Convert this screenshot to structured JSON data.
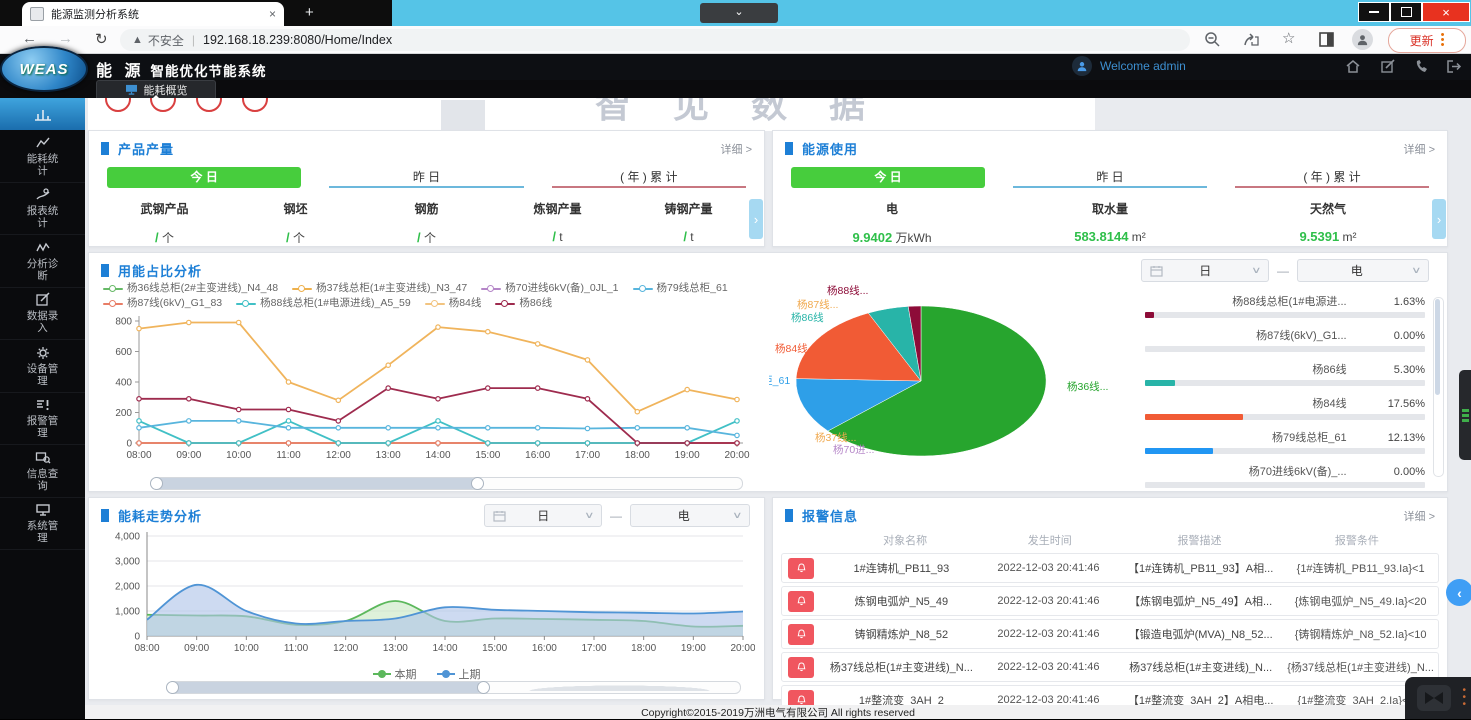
{
  "browser": {
    "tab_title": "能源监测分析系统",
    "security_label": "不安全",
    "url": "192.168.18.239:8080/Home/Index",
    "update_label": "更新"
  },
  "header": {
    "logo": "WEAS",
    "title_main": "能 源",
    "title_sub": "智能优化节能系统",
    "welcome": "Welcome admin"
  },
  "tabstrip": {
    "active_tab": "能耗概览"
  },
  "banner": {
    "watermark": "智 见 数 据"
  },
  "sidebar": {
    "items": [
      {
        "label": "能耗统计",
        "icon": "trend-icon"
      },
      {
        "label": "报表统计",
        "icon": "report-icon"
      },
      {
        "label": "分析诊断",
        "icon": "diagnosis-icon"
      },
      {
        "label": "数据录入",
        "icon": "data-entry-icon"
      },
      {
        "label": "设备管理",
        "icon": "device-icon"
      },
      {
        "label": "报警管理",
        "icon": "alarm-icon"
      },
      {
        "label": "信息查询",
        "icon": "query-icon"
      },
      {
        "label": "系统管理",
        "icon": "system-icon"
      }
    ]
  },
  "panels": {
    "product": {
      "title": "产品产量",
      "detail_label": "详细",
      "tabs": [
        "今 日",
        "昨 日",
        "( 年 ) 累 计"
      ],
      "columns": [
        {
          "name": "武钢产品",
          "value": "/",
          "unit": "个"
        },
        {
          "name": "钢坯",
          "value": "/",
          "unit": "个"
        },
        {
          "name": "钢筋",
          "value": "/",
          "unit": "个"
        },
        {
          "name": "炼钢产量",
          "value": "/",
          "unit": "t"
        },
        {
          "name": "铸钢产量",
          "value": "/",
          "unit": "t"
        }
      ]
    },
    "energy": {
      "title": "能源使用",
      "detail_label": "详细",
      "tabs": [
        "今 日",
        "昨 日",
        "( 年 ) 累 计"
      ],
      "columns": [
        {
          "name": "电",
          "value": "9.9402",
          "unit": "万kWh"
        },
        {
          "name": "取水量",
          "value": "583.8144",
          "unit": "m²"
        },
        {
          "name": "天然气",
          "value": "9.5391",
          "unit": "m²"
        }
      ]
    },
    "usage": {
      "title": "用能占比分析",
      "filters": {
        "period": "日",
        "energy": "电"
      },
      "legend": [
        {
          "label": "杨36线总柜(2#主变进线)_N4_48",
          "color": "#67b967"
        },
        {
          "label": "杨37线总柜(1#主变进线)_N3_47",
          "color": "#eeb14e"
        },
        {
          "label": "杨70进线6kV(备)_0JL_1",
          "color": "#b586c8"
        },
        {
          "label": "杨79线总柜_61",
          "color": "#58b5dd"
        },
        {
          "label": "杨87线(6kV)_G1_83",
          "color": "#e87d66"
        },
        {
          "label": "杨88线总柜(1#电源进线)_A5_59",
          "color": "#41c0c6"
        },
        {
          "label": "杨84线",
          "color": "#f2c480"
        },
        {
          "label": "杨86线",
          "color": "#9e2b4e"
        }
      ],
      "chart_data": {
        "type": "line",
        "x": [
          "08:00",
          "09:00",
          "10:00",
          "11:00",
          "12:00",
          "13:00",
          "14:00",
          "15:00",
          "16:00",
          "17:00",
          "18:00",
          "19:00",
          "20:00"
        ],
        "ylim": [
          0,
          800
        ],
        "yticks": [
          800,
          600,
          400,
          200,
          0
        ],
        "series": [
          {
            "name": "杨36线总柜(2#主变进线)_N4_48",
            "color": "#67b967",
            "values": [
              0,
              0,
              0,
              0,
              0,
              0,
              0,
              0,
              0,
              0,
              0,
              0,
              0
            ]
          },
          {
            "name": "杨70进线6kV(备)_0JL_1",
            "color": "#b586c8",
            "values": [
              0,
              0,
              0,
              0,
              0,
              0,
              0,
              0,
              0,
              0,
              0,
              0,
              0
            ]
          },
          {
            "name": "杨84线",
            "color": "#f2c480",
            "values": [
              0,
              0,
              0,
              0,
              0,
              0,
              0,
              0,
              0,
              0,
              0,
              0,
              0
            ]
          },
          {
            "name": "杨87线(6kV)_G1_83",
            "color": "#e87d66",
            "values": [
              0,
              0,
              0,
              0,
              0,
              0,
              0,
              0,
              0,
              0,
              0,
              0,
              0
            ]
          },
          {
            "name": "杨88线总柜(1#电源进线)_A5_59",
            "color": "#41c0c6",
            "values": [
              145,
              0,
              0,
              145,
              0,
              0,
              145,
              0,
              0,
              0,
              0,
              0,
              145
            ]
          },
          {
            "name": "杨79线总柜_61",
            "color": "#58b5dd",
            "values": [
              100,
              145,
              145,
              100,
              100,
              100,
              100,
              100,
              100,
              95,
              100,
              100,
              50
            ]
          },
          {
            "name": "杨86线",
            "color": "#9e2b4e",
            "values": [
              290,
              290,
              220,
              220,
              145,
              360,
              290,
              360,
              360,
              290,
              0,
              0,
              0
            ]
          },
          {
            "name": "杨37线总柜(1#主变进线)_N3_47",
            "color": "#f0b45c",
            "values": [
              750,
              790,
              790,
              400,
              280,
              510,
              760,
              730,
              650,
              545,
              205,
              350,
              285
            ]
          }
        ]
      },
      "pie": {
        "type": "pie",
        "slices": [
          {
            "name": "杨36线总柜(2#主变进线)_N4_48",
            "pct": 63.38,
            "color": "#27a52e"
          },
          {
            "name": "杨79线总柜_61",
            "pct": 12.13,
            "color": "#2e9fe8"
          },
          {
            "name": "杨84线",
            "pct": 17.56,
            "color": "#f15b35"
          },
          {
            "name": "杨86线",
            "pct": 5.3,
            "color": "#28b4a8"
          },
          {
            "name": "杨88线总柜(1#电源进线)_A5_59",
            "pct": 1.63,
            "color": "#8d0c38"
          }
        ],
        "side_labels": [
          {
            "text": "杨88线...",
            "color": "#8d0c38"
          },
          {
            "text": "杨87线...",
            "color": "#f0a94e"
          },
          {
            "text": "杨86线",
            "color": "#28b4a8"
          },
          {
            "text": "杨84线",
            "color": "#f15b35"
          },
          {
            "text": "杨79线总柜_61",
            "color": "#2e9fe8"
          },
          {
            "text": "杨37线...",
            "color": "#f0a94e"
          },
          {
            "text": "杨70进...",
            "color": "#b586c8"
          },
          {
            "text": "杨36线...",
            "color": "#27a52e"
          }
        ]
      },
      "ranking": [
        {
          "name": "杨88线总柜(1#电源进...",
          "pct": "1.63%",
          "color": "#8d0c38"
        },
        {
          "name": "杨87线(6kV)_G1...",
          "pct": "0.00%",
          "color": "#e87d66"
        },
        {
          "name": "杨86线",
          "pct": "5.30%",
          "color": "#28b4a8"
        },
        {
          "name": "杨84线",
          "pct": "17.56%",
          "color": "#f15b35"
        },
        {
          "name": "杨79线总柜_61",
          "pct": "12.13%",
          "color": "#2196f3"
        },
        {
          "name": "杨70进线6kV(备)_...",
          "pct": "0.00%",
          "color": "#b586c8"
        }
      ]
    },
    "trend": {
      "title": "能耗走势分析",
      "filters": {
        "period": "日",
        "energy": "电"
      },
      "chart_data": {
        "type": "area",
        "x": [
          "08:00",
          "09:00",
          "10:00",
          "11:00",
          "12:00",
          "13:00",
          "14:00",
          "15:00",
          "16:00",
          "17:00",
          "18:00",
          "19:00",
          "20:00"
        ],
        "ylim": [
          0,
          4000
        ],
        "yticks": [
          "4,000",
          "3,000",
          "2,000",
          "1,000",
          "0"
        ],
        "series": [
          {
            "name": "本期",
            "color": "#5cb85c",
            "fill": "#c9e8c4",
            "values": [
              850,
              820,
              790,
              450,
              600,
              1400,
              600,
              700,
              680,
              650,
              600,
              380,
              410
            ]
          },
          {
            "name": "上期",
            "color": "#4f94d5",
            "fill": "#aec4e8",
            "values": [
              650,
              2050,
              1000,
              500,
              600,
              700,
              1150,
              1050,
              1000,
              950,
              930,
              900,
              980
            ]
          }
        ]
      }
    },
    "alarm": {
      "title": "报警信息",
      "detail_label": "详细",
      "columns": [
        "对象名称",
        "发生时间",
        "报警描述",
        "报警条件"
      ],
      "rows": [
        {
          "name": "1#连铸机_PB11_93",
          "time": "2022-12-03 20:41:46",
          "desc": "【1#连铸机_PB11_93】A相...",
          "cond": "{1#连铸机_PB11_93.Ia}<1"
        },
        {
          "name": "炼钢电弧炉_N5_49",
          "time": "2022-12-03 20:41:46",
          "desc": "【炼钢电弧炉_N5_49】A相...",
          "cond": "{炼钢电弧炉_N5_49.Ia}<20"
        },
        {
          "name": "铸钢精炼炉_N8_52",
          "time": "2022-12-03 20:41:46",
          "desc": "【锻造电弧炉(MVA)_N8_52...",
          "cond": "{铸钢精炼炉_N8_52.Ia}<10"
        },
        {
          "name": "杨37线总柜(1#主变进线)_N...",
          "time": "2022-12-03 20:41:46",
          "desc": "杨37线总柜(1#主变进线)_N...",
          "cond": "{杨37线总柜(1#主变进线)_N..."
        },
        {
          "name": "1#整流变_3AH_2",
          "time": "2022-12-03 20:41:46",
          "desc": "【1#整流变_3AH_2】A相电...",
          "cond": "{1#整流变_3AH_2.Ia}<2..."
        }
      ]
    }
  },
  "footer": {
    "copyright": "Copyright©2015-2019万洲电气有限公司 All rights reserved"
  }
}
